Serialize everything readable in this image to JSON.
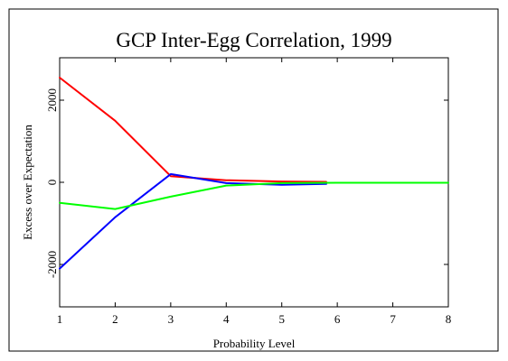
{
  "chart_data": {
    "type": "line",
    "title": "GCP Inter-Egg Correlation, 1999",
    "xlabel": "Probability Level",
    "ylabel": "Excess over Expectation",
    "xlim": [
      1,
      8
    ],
    "ylim": [
      -3000,
      3000
    ],
    "x_ticks": [
      "1",
      "2",
      "3",
      "4",
      "5",
      "6",
      "7",
      "8"
    ],
    "y_ticks": [
      "-2000",
      "0",
      "2000"
    ],
    "y_tick_values": [
      -2000,
      0,
      2000
    ],
    "grid": false,
    "series": [
      {
        "color": "#ff0000",
        "points": [
          [
            1,
            2550
          ],
          [
            2,
            1500
          ],
          [
            3,
            150
          ],
          [
            4,
            50
          ],
          [
            5,
            20
          ],
          [
            5.8,
            10
          ]
        ]
      },
      {
        "color": "#0000ff",
        "points": [
          [
            1,
            -2100
          ],
          [
            2,
            -850
          ],
          [
            3,
            200
          ],
          [
            4,
            -20
          ],
          [
            5,
            -60
          ],
          [
            5.8,
            -40
          ]
        ]
      },
      {
        "color": "#00ff00",
        "points": [
          [
            1,
            -500
          ],
          [
            2,
            -650
          ],
          [
            3,
            -350
          ],
          [
            4,
            -80
          ],
          [
            5,
            -20
          ],
          [
            6,
            -10
          ],
          [
            7,
            -10
          ],
          [
            8,
            -10
          ]
        ]
      }
    ]
  }
}
